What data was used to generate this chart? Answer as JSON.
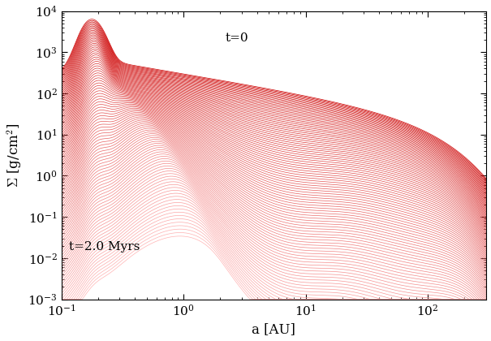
{
  "xlabel": "a [AU]",
  "ylabel": "$\\Sigma$ [g/cm$^2$]",
  "xlim": [
    0.1,
    300
  ],
  "ylim": [
    0.001,
    10000.0
  ],
  "label_t0": "t=0",
  "label_tend": "t=2.0 Myrs",
  "n_curves": 100,
  "line_color": "#cc0000",
  "background": "#ffffff",
  "figsize": [
    6.05,
    4.2
  ],
  "dpi": 100,
  "lw": 0.5
}
